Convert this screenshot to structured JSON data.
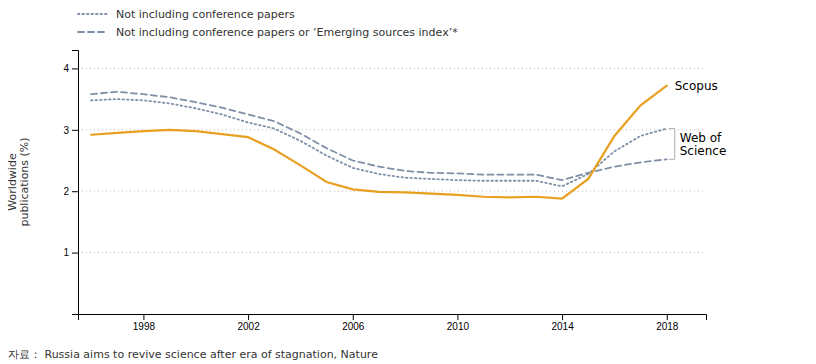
{
  "chart_data": {
    "type": "line",
    "y_label": "Worldwide\npublications (%)",
    "x": [
      1996,
      1997,
      1998,
      1999,
      2000,
      2001,
      2002,
      2003,
      2004,
      2005,
      2006,
      2007,
      2008,
      2009,
      2010,
      2011,
      2012,
      2013,
      2014,
      2015,
      2016,
      2017,
      2018
    ],
    "series": [
      {
        "name": "Not including conference papers",
        "color": "#7f8fa6",
        "line_style": "dotted",
        "values": [
          3.48,
          3.5,
          3.48,
          3.43,
          3.35,
          3.25,
          3.12,
          3.02,
          2.82,
          2.58,
          2.38,
          2.28,
          2.22,
          2.2,
          2.18,
          2.17,
          2.17,
          2.17,
          2.08,
          2.28,
          2.65,
          2.9,
          3.02
        ]
      },
      {
        "name": "Not including conference papers or ‘Emerging sources index’*",
        "color": "#7f8fa6",
        "line_style": "dashed",
        "values": [
          3.58,
          3.62,
          3.58,
          3.53,
          3.45,
          3.36,
          3.25,
          3.14,
          2.94,
          2.7,
          2.5,
          2.4,
          2.33,
          2.3,
          2.29,
          2.27,
          2.27,
          2.27,
          2.18,
          2.3,
          2.4,
          2.47,
          2.52
        ]
      },
      {
        "name": "Scopus",
        "color": "#E8A020",
        "line_style": "solid",
        "values": [
          2.92,
          2.95,
          2.98,
          3.0,
          2.98,
          2.93,
          2.88,
          2.68,
          2.42,
          2.15,
          2.03,
          1.99,
          1.98,
          1.96,
          1.94,
          1.91,
          1.9,
          1.91,
          1.88,
          2.2,
          2.9,
          3.4,
          3.72
        ]
      }
    ],
    "xlim": [
      1995.5,
      2019.5
    ],
    "xticks": [
      1998,
      2002,
      2006,
      2010,
      2014,
      2018
    ],
    "ylim": [
      0,
      4.3
    ],
    "yticks": [
      1,
      2,
      3,
      4
    ],
    "grid": true,
    "annotations": [
      "Web of\nScience",
      "자료： Russia aims to revive science after era of stagnation, Nature"
    ]
  }
}
